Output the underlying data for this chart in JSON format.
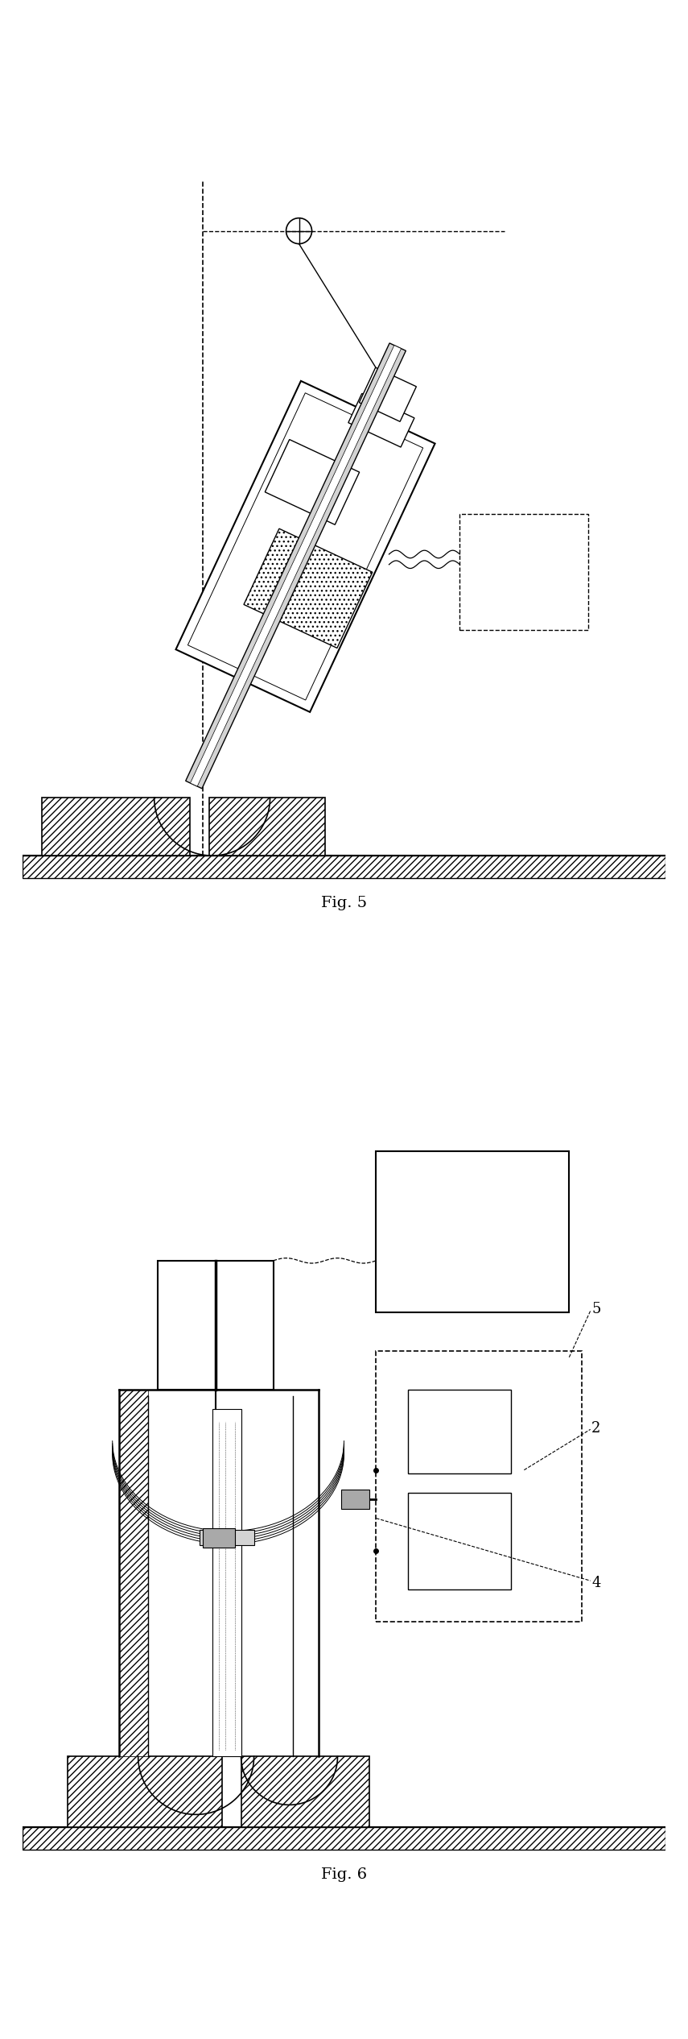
{
  "fig5_label": "Fig. 5",
  "fig6_label": "Fig. 6",
  "bg_color": "#ffffff",
  "line_color": "#000000",
  "label_5": "5",
  "label_2": "2",
  "label_4": "4"
}
